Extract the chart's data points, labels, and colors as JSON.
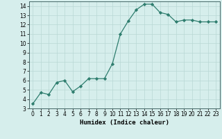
{
  "x": [
    0,
    1,
    2,
    3,
    4,
    5,
    6,
    7,
    8,
    9,
    10,
    11,
    12,
    13,
    14,
    15,
    16,
    17,
    18,
    19,
    20,
    21,
    22,
    23
  ],
  "y": [
    3.5,
    4.7,
    4.5,
    5.8,
    6.0,
    4.8,
    5.4,
    6.2,
    6.2,
    6.2,
    7.8,
    11.0,
    12.4,
    13.6,
    14.2,
    14.2,
    13.3,
    13.1,
    12.3,
    12.5,
    12.5,
    12.3,
    12.3,
    12.3
  ],
  "line_color": "#2e7d6e",
  "marker": "D",
  "marker_size": 2.2,
  "bg_color": "#d6eeec",
  "grid_color": "#b8d8d4",
  "xlabel": "Humidex (Indice chaleur)",
  "xlim": [
    -0.5,
    23.5
  ],
  "ylim": [
    3,
    14.5
  ],
  "yticks": [
    3,
    4,
    5,
    6,
    7,
    8,
    9,
    10,
    11,
    12,
    13,
    14
  ],
  "xticks": [
    0,
    1,
    2,
    3,
    4,
    5,
    6,
    7,
    8,
    9,
    10,
    11,
    12,
    13,
    14,
    15,
    16,
    17,
    18,
    19,
    20,
    21,
    22,
    23
  ],
  "tick_fontsize": 5.5,
  "xlabel_fontsize": 6.5
}
